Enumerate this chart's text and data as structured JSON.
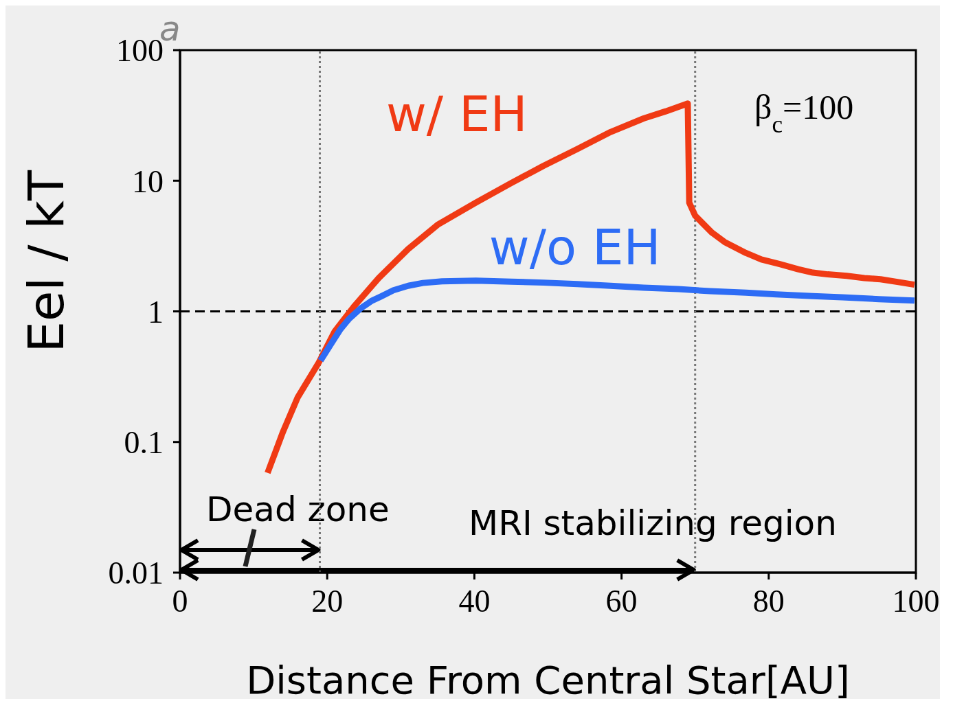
{
  "chart_data": {
    "type": "line",
    "xlabel": "Distance From Central Star[AU]",
    "ylabel": "Eel / kT",
    "log": "y",
    "xlim": [
      0,
      100
    ],
    "xticks": [
      0,
      20,
      40,
      60,
      80,
      100
    ],
    "ylim": [
      0.01,
      100
    ],
    "yticks": [
      0.01,
      0.1,
      1,
      10,
      100
    ],
    "marker": "none",
    "series": [
      {
        "name": "w/  EH",
        "color": "#f03a14",
        "x": [
          11.9,
          14,
          16,
          18.8,
          21,
          23.7,
          27,
          31,
          35,
          40.2,
          45,
          49.4,
          54,
          58.5,
          63,
          66,
          69,
          69.2,
          70,
          72.3,
          74,
          76.9,
          79,
          81.5,
          84,
          86,
          88,
          90.6,
          93,
          95.2,
          97.5,
          99.8
        ],
        "values": [
          0.058,
          0.12,
          0.22,
          0.4,
          0.7,
          1.1,
          1.8,
          3.0,
          4.6,
          6.8,
          9.6,
          13,
          17.5,
          23.6,
          30,
          34,
          39,
          6.8,
          5.4,
          4.0,
          3.4,
          2.8,
          2.5,
          2.3,
          2.1,
          1.98,
          1.92,
          1.87,
          1.8,
          1.76,
          1.68,
          1.6
        ]
      },
      {
        "name": "w/o EH",
        "color": "#2d6cf5",
        "x": [
          19.1,
          20.5,
          21.8,
          23,
          24.6,
          26,
          27.3,
          29,
          31,
          33,
          35.6,
          40.2,
          45,
          49.4,
          54,
          58.5,
          63,
          67.7,
          72,
          76.9,
          81,
          86,
          90,
          95,
          99.8
        ],
        "values": [
          0.42,
          0.56,
          0.73,
          0.88,
          1.06,
          1.2,
          1.3,
          1.45,
          1.57,
          1.65,
          1.7,
          1.72,
          1.69,
          1.66,
          1.62,
          1.57,
          1.52,
          1.48,
          1.43,
          1.39,
          1.35,
          1.31,
          1.28,
          1.24,
          1.21
        ]
      }
    ],
    "ref_lines": [
      {
        "axis": "y",
        "value": 1,
        "line_style": "dashed",
        "color": "#000000"
      },
      {
        "axis": "x",
        "value": 19,
        "line_style": "dotted",
        "color": "#777777"
      },
      {
        "axis": "x",
        "value": 70,
        "line_style": "dotted",
        "color": "#777777"
      }
    ],
    "annotations": [
      "a",
      "β$_{c}$=100",
      "Dead zone",
      "MRI stabilizing region"
    ]
  }
}
